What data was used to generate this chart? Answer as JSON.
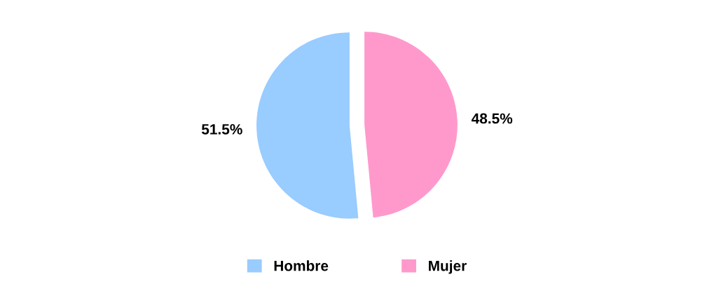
{
  "chart_data": {
    "type": "pie",
    "categories": [
      "Hombre",
      "Mujer"
    ],
    "values": [
      51.5,
      48.5
    ],
    "colors": [
      "#99ccff",
      "#ff99cc"
    ],
    "value_labels": [
      "51.5%",
      "48.5%"
    ],
    "legend": "bottom"
  }
}
